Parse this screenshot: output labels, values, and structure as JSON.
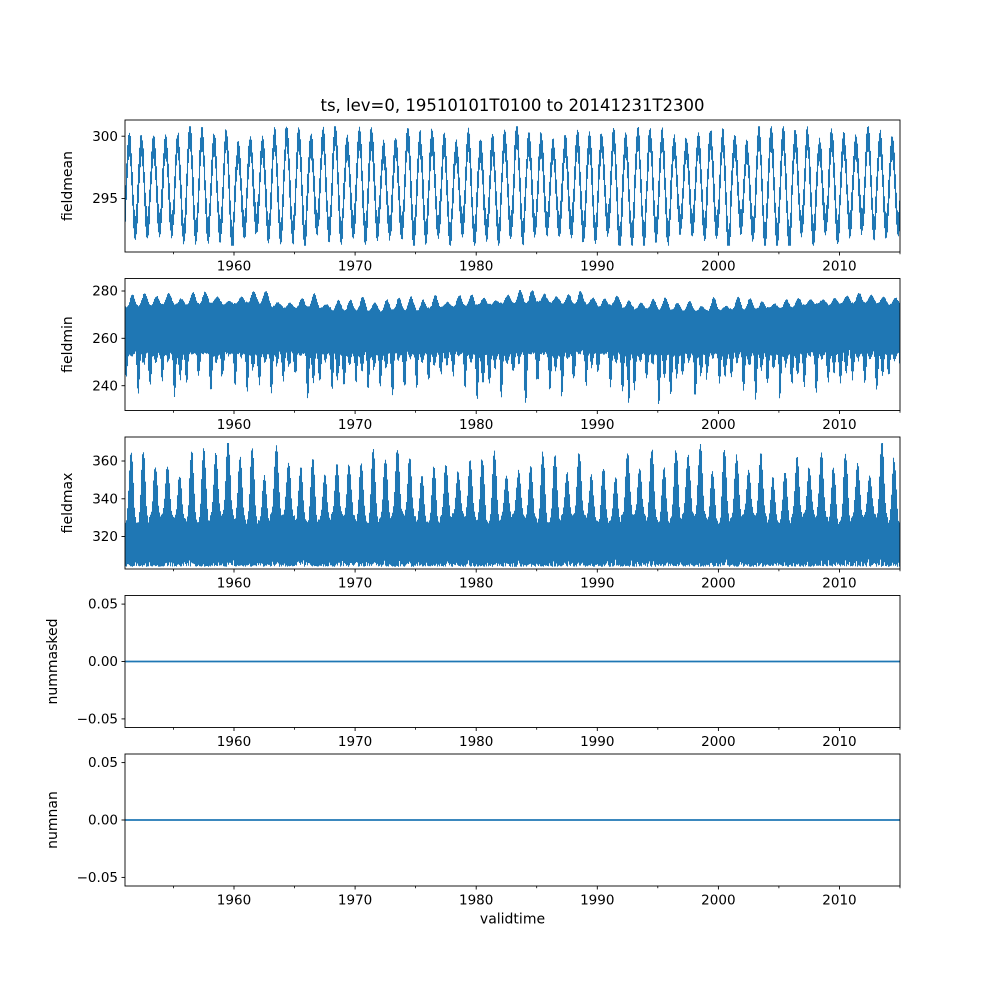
{
  "figure": {
    "title": "ts, lev=0, 19510101T0100 to 20141231T2300",
    "xlabel": "validtime",
    "line_color": "#1f77b4",
    "background_color": "#ffffff",
    "spine_color": "#000000"
  },
  "chart_data": {
    "type": "line",
    "title": "ts, lev=0, 19510101T0100 to 20141231T2300",
    "xlabel": "validtime",
    "x_axis": {
      "xlim": [
        1951,
        2015
      ],
      "xticks": [
        1960,
        1970,
        1980,
        1990,
        2000,
        2010
      ],
      "xtick_labels": [
        "1960",
        "1970",
        "1980",
        "1990",
        "2000",
        "2010"
      ],
      "xticks_minor": [
        1955,
        1965,
        1975,
        1985,
        1995,
        2005,
        2015
      ]
    },
    "grid": false,
    "legend": "none",
    "subplots": [
      {
        "ylabel": "fieldmean",
        "ylim": [
          290.7,
          301.3
        ],
        "yticks": [
          295,
          300
        ],
        "ytick_labels": [
          "295",
          "300"
        ],
        "series": {
          "kind": "seasonal_band",
          "mean": 295.9,
          "seasonal_amp_min": 3.0,
          "seasonal_amp_max": 4.1,
          "noise_band": 0.85,
          "peak_phase": 0.35,
          "value_min": 291.2,
          "value_max": 300.8,
          "cycles_per_year": 1
        }
      },
      {
        "ylabel": "fieldmin",
        "ylim": [
          229.5,
          285.3
        ],
        "yticks": [
          240,
          260,
          280
        ],
        "ytick_labels": [
          "240",
          "260",
          "280"
        ],
        "series": {
          "kind": "spiky_down",
          "top_base": 273.5,
          "top_bump": 4.5,
          "summer_floor": 253.5,
          "winter_min_low": 234.5,
          "winter_min_high": 247.0,
          "deep_dip_year": 1992.6,
          "deep_dip_value": 231.8,
          "value_max": 282.5
        }
      },
      {
        "ylabel": "fieldmax",
        "ylim": [
          302.8,
          372.7
        ],
        "yticks": [
          320,
          340,
          360
        ],
        "ytick_labels": [
          "320",
          "340",
          "360"
        ],
        "series": {
          "kind": "spiky_up",
          "bottom_base": 305.5,
          "bottom_noise": 3.0,
          "valley_top": 328.0,
          "peak_min": 349.0,
          "peak_max": 368.0,
          "peak_phase": 0.5,
          "tall_years": {
            "1981": 366.5,
            "2013": 369.3
          },
          "value_min": 303.2,
          "value_max": 369.5
        }
      },
      {
        "ylabel": "nummasked",
        "ylim": [
          -0.0575,
          0.0575
        ],
        "yticks": [
          -0.05,
          0,
          0.05
        ],
        "ytick_labels": [
          "−0.05",
          "0.00",
          "0.05"
        ],
        "series": {
          "kind": "constant",
          "value": 0
        }
      },
      {
        "ylabel": "numnan",
        "ylim": [
          -0.0575,
          0.0575
        ],
        "yticks": [
          -0.05,
          0,
          0.05
        ],
        "ytick_labels": [
          "−0.05",
          "0.00",
          "0.05"
        ],
        "series": {
          "kind": "constant",
          "value": 0
        }
      }
    ]
  }
}
